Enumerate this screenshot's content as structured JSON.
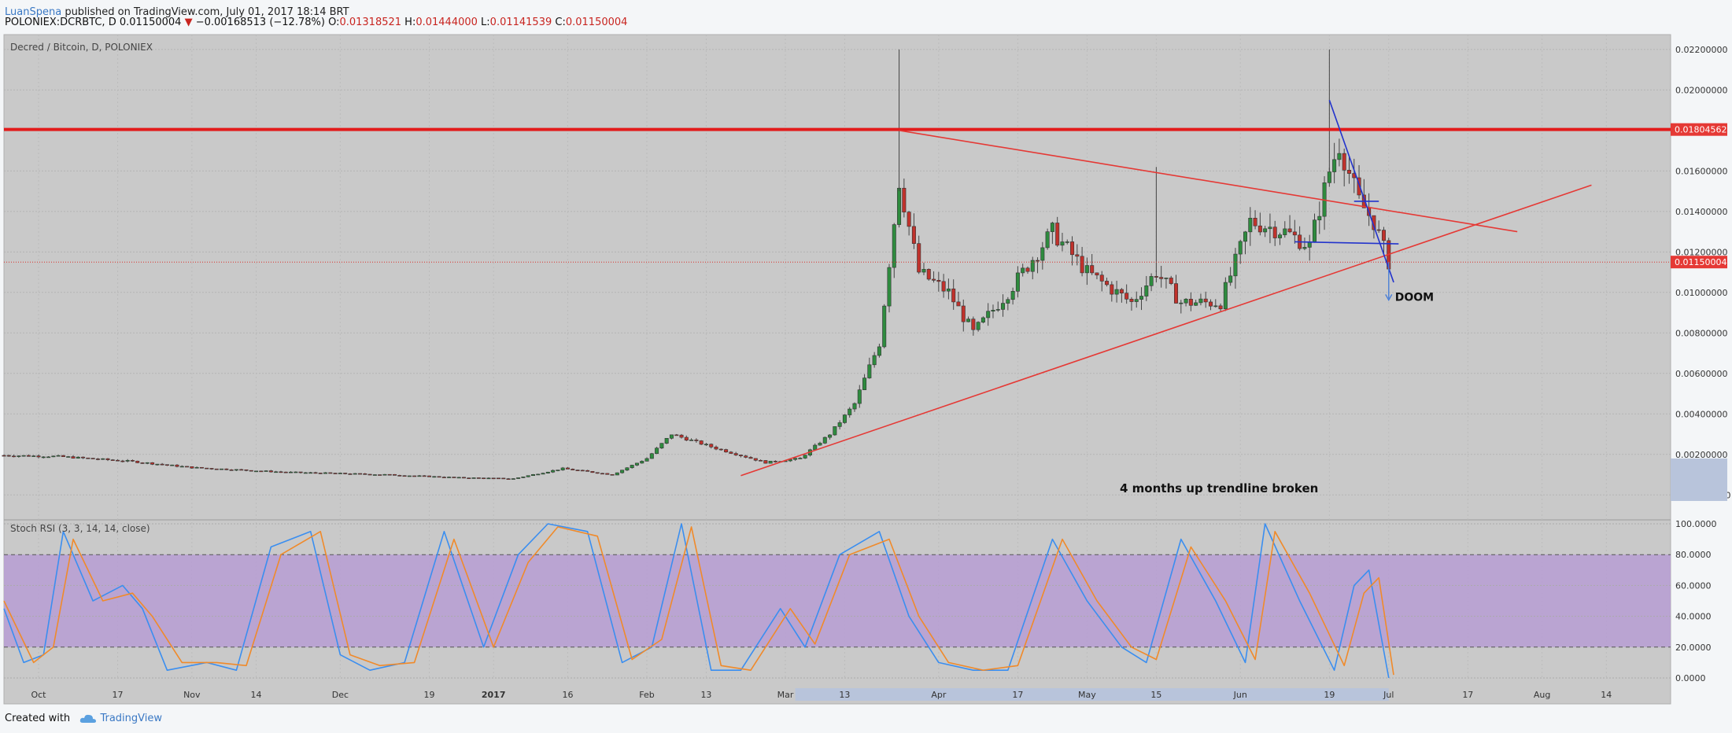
{
  "header": {
    "author": "LuanSpena",
    "published": "published on TradingView.com, July 01, 2017 18:14 BRT",
    "symbol": "POLONIEX:DCRBTC, D",
    "last": "0.01150004",
    "change_arrow": "▼",
    "change": "−0.00168513 (−12.78%)",
    "o_label": "O:",
    "o_val": "0.01318521",
    "h_label": "H:",
    "h_val": "0.01444000",
    "l_label": "L:",
    "l_val": "0.01141539",
    "c_label": "C:",
    "c_val": "0.01150004"
  },
  "footer": {
    "created_with": "Created with",
    "brand": "TradingView"
  },
  "chart_data": [
    {
      "type": "candlestick",
      "title": "Decred / Bitcoin, D, POLONIEX",
      "ylim": [
        -0.001,
        0.0225
      ],
      "y_ticks": [
        {
          "v": 0.022,
          "label": "0.02200000"
        },
        {
          "v": 0.02,
          "label": "0.02000000"
        },
        {
          "v": 0.016,
          "label": "0.01600000"
        },
        {
          "v": 0.014,
          "label": "0.01400000"
        },
        {
          "v": 0.012,
          "label": "0.01200000"
        },
        {
          "v": 0.01,
          "label": "0.01000000"
        },
        {
          "v": 0.008,
          "label": "0.00800000"
        },
        {
          "v": 0.006,
          "label": "0.00600000"
        },
        {
          "v": 0.004,
          "label": "0.00400000"
        },
        {
          "v": 0.002,
          "label": "0.00200000"
        },
        {
          "v": 0.0,
          "label": "-0.00000000"
        }
      ],
      "price_markers": [
        {
          "v": 0.01804562,
          "label": "0.01804562"
        },
        {
          "v": 0.01150004,
          "label": "0.01150004"
        }
      ],
      "horizontal_resistance": 0.01804562,
      "annotations": [
        "DOOM",
        "4 months up trendline broken"
      ],
      "x_range": [
        "2016-09-24",
        "2017-08-27"
      ],
      "x_ticks": [
        {
          "date": "2016-10-01",
          "label": "Oct"
        },
        {
          "date": "2016-10-17",
          "label": "17"
        },
        {
          "date": "2016-11-01",
          "label": "Nov"
        },
        {
          "date": "2016-11-14",
          "label": "14"
        },
        {
          "date": "2016-12-01",
          "label": "Dec"
        },
        {
          "date": "2016-12-19",
          "label": "19"
        },
        {
          "date": "2017-01-01",
          "label": "2017"
        },
        {
          "date": "2017-01-16",
          "label": "16"
        },
        {
          "date": "2017-02-01",
          "label": "Feb"
        },
        {
          "date": "2017-02-13",
          "label": "13"
        },
        {
          "date": "2017-03-01",
          "label": "Mar"
        },
        {
          "date": "2017-03-13",
          "label": "13"
        },
        {
          "date": "2017-04-01",
          "label": "Apr"
        },
        {
          "date": "2017-04-17",
          "label": "17"
        },
        {
          "date": "2017-05-01",
          "label": "May"
        },
        {
          "date": "2017-05-15",
          "label": "15"
        },
        {
          "date": "2017-06-01",
          "label": "Jun"
        },
        {
          "date": "2017-06-19",
          "label": "19"
        },
        {
          "date": "2017-07-01",
          "label": "Jul"
        },
        {
          "date": "2017-07-17",
          "label": "17"
        },
        {
          "date": "2017-08-01",
          "label": "Aug"
        },
        {
          "date": "2017-08-14",
          "label": "14"
        }
      ],
      "trendlines": [
        {
          "color": "#e53935",
          "from": {
            "date": "2017-02-20",
            "v": 0.00095
          },
          "to": {
            "date": "2017-08-11",
            "v": 0.0153
          }
        },
        {
          "color": "#e53935",
          "from": {
            "date": "2017-03-24",
            "v": 0.018
          },
          "to": {
            "date": "2017-07-27",
            "v": 0.013
          }
        },
        {
          "color": "#2233cc",
          "from": {
            "date": "2017-06-19",
            "v": 0.0195
          },
          "to": {
            "date": "2017-07-02",
            "v": 0.0105
          }
        },
        {
          "color": "#2233cc",
          "from": {
            "date": "2017-06-12",
            "v": 0.0125
          },
          "to": {
            "date": "2017-07-03",
            "v": 0.0124
          }
        },
        {
          "color": "#2233cc",
          "from": {
            "date": "2017-06-24",
            "v": 0.0145
          },
          "to": {
            "date": "2017-06-29",
            "v": 0.0145
          }
        }
      ],
      "candle_anchors": [
        {
          "date": "2016-09-24",
          "v": 0.00195
        },
        {
          "date": "2016-10-05",
          "v": 0.0019
        },
        {
          "date": "2016-10-20",
          "v": 0.00165
        },
        {
          "date": "2016-11-01",
          "v": 0.00135
        },
        {
          "date": "2016-11-20",
          "v": 0.00112
        },
        {
          "date": "2016-12-10",
          "v": 0.001
        },
        {
          "date": "2016-12-25",
          "v": 0.00085
        },
        {
          "date": "2017-01-05",
          "v": 0.0008
        },
        {
          "date": "2017-01-15",
          "v": 0.0013
        },
        {
          "date": "2017-01-25",
          "v": 0.001
        },
        {
          "date": "2017-02-01",
          "v": 0.0018
        },
        {
          "date": "2017-02-06",
          "v": 0.003
        },
        {
          "date": "2017-02-15",
          "v": 0.0023
        },
        {
          "date": "2017-02-25",
          "v": 0.0016
        },
        {
          "date": "2017-03-04",
          "v": 0.0018
        },
        {
          "date": "2017-03-10",
          "v": 0.003
        },
        {
          "date": "2017-03-15",
          "v": 0.0045
        },
        {
          "date": "2017-03-20",
          "v": 0.0075
        },
        {
          "date": "2017-03-24",
          "v": 0.0155
        },
        {
          "date": "2017-03-28",
          "v": 0.011
        },
        {
          "date": "2017-04-03",
          "v": 0.01
        },
        {
          "date": "2017-04-08",
          "v": 0.008
        },
        {
          "date": "2017-04-15",
          "v": 0.01
        },
        {
          "date": "2017-04-24",
          "v": 0.013
        },
        {
          "date": "2017-05-01",
          "v": 0.011
        },
        {
          "date": "2017-05-10",
          "v": 0.0095
        },
        {
          "date": "2017-05-15",
          "v": 0.011
        },
        {
          "date": "2017-05-20",
          "v": 0.0095
        },
        {
          "date": "2017-05-28",
          "v": 0.0095
        },
        {
          "date": "2017-06-03",
          "v": 0.0135
        },
        {
          "date": "2017-06-10",
          "v": 0.013
        },
        {
          "date": "2017-06-15",
          "v": 0.0123
        },
        {
          "date": "2017-06-19",
          "v": 0.016
        },
        {
          "date": "2017-06-21",
          "v": 0.0173
        },
        {
          "date": "2017-06-25",
          "v": 0.0145
        },
        {
          "date": "2017-06-28",
          "v": 0.0135
        },
        {
          "date": "2017-07-01",
          "v": 0.0115
        }
      ]
    },
    {
      "type": "line",
      "title": "Stoch RSI (3, 3, 14, 14, close)",
      "ylim": [
        0,
        100
      ],
      "y_ticks": [
        {
          "v": 100,
          "label": "100.0000"
        },
        {
          "v": 80,
          "label": "80.0000"
        },
        {
          "v": 60,
          "label": "60.0000"
        },
        {
          "v": 40,
          "label": "40.0000"
        },
        {
          "v": 20,
          "label": "20.0000"
        },
        {
          "v": 0,
          "label": "0.0000"
        }
      ],
      "band": [
        20,
        80
      ],
      "series": [
        {
          "color": "#3a8ef0",
          "points": [
            [
              "2016-09-24",
              45
            ],
            [
              "2016-09-28",
              10
            ],
            [
              "2016-10-02",
              15
            ],
            [
              "2016-10-06",
              95
            ],
            [
              "2016-10-12",
              50
            ],
            [
              "2016-10-18",
              60
            ],
            [
              "2016-10-22",
              45
            ],
            [
              "2016-10-27",
              5
            ],
            [
              "2016-11-04",
              10
            ],
            [
              "2016-11-10",
              5
            ],
            [
              "2016-11-17",
              85
            ],
            [
              "2016-11-25",
              95
            ],
            [
              "2016-12-01",
              15
            ],
            [
              "2016-12-07",
              5
            ],
            [
              "2016-12-14",
              10
            ],
            [
              "2016-12-22",
              95
            ],
            [
              "2016-12-30",
              20
            ],
            [
              "2017-01-06",
              80
            ],
            [
              "2017-01-12",
              100
            ],
            [
              "2017-01-20",
              95
            ],
            [
              "2017-01-27",
              10
            ],
            [
              "2017-02-02",
              20
            ],
            [
              "2017-02-08",
              100
            ],
            [
              "2017-02-14",
              5
            ],
            [
              "2017-02-20",
              5
            ],
            [
              "2017-02-28",
              45
            ],
            [
              "2017-03-05",
              20
            ],
            [
              "2017-03-12",
              80
            ],
            [
              "2017-03-20",
              95
            ],
            [
              "2017-03-26",
              40
            ],
            [
              "2017-04-01",
              10
            ],
            [
              "2017-04-08",
              5
            ],
            [
              "2017-04-15",
              5
            ],
            [
              "2017-04-24",
              90
            ],
            [
              "2017-05-01",
              50
            ],
            [
              "2017-05-08",
              20
            ],
            [
              "2017-05-13",
              10
            ],
            [
              "2017-05-20",
              90
            ],
            [
              "2017-05-27",
              50
            ],
            [
              "2017-06-02",
              10
            ],
            [
              "2017-06-06",
              100
            ],
            [
              "2017-06-13",
              50
            ],
            [
              "2017-06-20",
              5
            ],
            [
              "2017-06-24",
              60
            ],
            [
              "2017-06-27",
              70
            ],
            [
              "2017-07-01",
              0
            ]
          ]
        },
        {
          "color": "#f08a2a",
          "points": [
            [
              "2016-09-24",
              50
            ],
            [
              "2016-09-30",
              10
            ],
            [
              "2016-10-04",
              20
            ],
            [
              "2016-10-08",
              90
            ],
            [
              "2016-10-14",
              50
            ],
            [
              "2016-10-20",
              55
            ],
            [
              "2016-10-24",
              40
            ],
            [
              "2016-10-30",
              10
            ],
            [
              "2016-11-06",
              10
            ],
            [
              "2016-11-12",
              8
            ],
            [
              "2016-11-19",
              80
            ],
            [
              "2016-11-27",
              95
            ],
            [
              "2016-12-03",
              15
            ],
            [
              "2016-12-09",
              8
            ],
            [
              "2016-12-16",
              10
            ],
            [
              "2016-12-24",
              90
            ],
            [
              "2017-01-01",
              20
            ],
            [
              "2017-01-08",
              75
            ],
            [
              "2017-01-14",
              98
            ],
            [
              "2017-01-22",
              92
            ],
            [
              "2017-01-29",
              12
            ],
            [
              "2017-02-04",
              25
            ],
            [
              "2017-02-10",
              98
            ],
            [
              "2017-02-16",
              8
            ],
            [
              "2017-02-22",
              5
            ],
            [
              "2017-03-02",
              45
            ],
            [
              "2017-03-07",
              22
            ],
            [
              "2017-03-14",
              80
            ],
            [
              "2017-03-22",
              90
            ],
            [
              "2017-03-28",
              40
            ],
            [
              "2017-04-03",
              10
            ],
            [
              "2017-04-10",
              5
            ],
            [
              "2017-04-17",
              8
            ],
            [
              "2017-04-26",
              90
            ],
            [
              "2017-05-03",
              50
            ],
            [
              "2017-05-10",
              20
            ],
            [
              "2017-05-15",
              12
            ],
            [
              "2017-05-22",
              85
            ],
            [
              "2017-05-29",
              50
            ],
            [
              "2017-06-04",
              12
            ],
            [
              "2017-06-08",
              95
            ],
            [
              "2017-06-15",
              55
            ],
            [
              "2017-06-22",
              8
            ],
            [
              "2017-06-26",
              55
            ],
            [
              "2017-06-29",
              65
            ],
            [
              "2017-07-02",
              2
            ]
          ]
        }
      ]
    }
  ]
}
